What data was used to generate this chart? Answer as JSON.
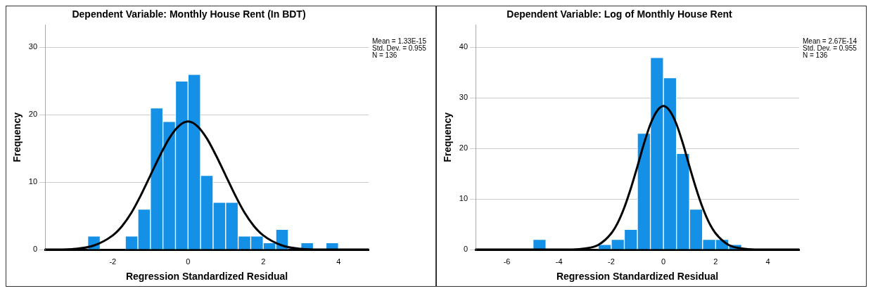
{
  "chart_data": [
    {
      "type": "histogram",
      "title": "Dependent Variable: Monthly House Rent (In BDT)",
      "xlabel": "Regression Standardized Residual",
      "ylabel": "Frequency",
      "color": "#1490e6",
      "bins": [
        -2.667,
        -2.333,
        -2,
        -1.667,
        -1.333,
        -1,
        -0.667,
        -0.333,
        0,
        0.333,
        0.667,
        1,
        1.333,
        1.667,
        2,
        2.333,
        2.667,
        3,
        3.333,
        3.667,
        4
      ],
      "values": [
        2,
        0,
        0,
        2,
        6,
        21,
        19,
        25,
        26,
        11,
        7,
        7,
        2,
        2,
        1,
        3,
        0,
        1,
        0,
        1
      ],
      "series": [
        {
          "type": "line",
          "color": "#000000",
          "x": [
            -3.8,
            -3.5,
            -3,
            -2.5,
            -2,
            -1.75,
            -1.5,
            -1.25,
            -1,
            -0.75,
            -0.5,
            -0.25,
            0,
            0.25,
            0.5,
            0.75,
            1,
            1.25,
            1.5,
            1.75,
            2,
            2.5,
            3,
            3.5,
            4,
            4.8
          ],
          "values": [
            0,
            0,
            0.1,
            0.6,
            2.1,
            3.5,
            5.5,
            8.1,
            11,
            13.9,
            16.5,
            18.3,
            19,
            18.3,
            16.5,
            13.9,
            11,
            8.1,
            5.5,
            3.5,
            2.1,
            0.6,
            0.1,
            0,
            0,
            0
          ]
        }
      ],
      "xlim": [
        -3.8,
        4.8
      ],
      "xticks": [
        -2,
        0,
        2,
        4
      ],
      "ylim": [
        0,
        33.3
      ],
      "yticks": [
        0,
        10,
        20,
        30
      ],
      "grid": "y",
      "annotations": [
        "Mean = 1.33E-15",
        "Std. Dev. = 0.955",
        "N = 136"
      ]
    },
    {
      "type": "histogram",
      "title": "Dependent Variable: Log of Monthly House Rent",
      "xlabel": "Regression Standardized Residual",
      "ylabel": "Frequency",
      "color": "#1490e6",
      "bins": [
        -5,
        -4.5,
        -4,
        -3.5,
        -3,
        -2.5,
        -2,
        -1.5,
        -1,
        -0.5,
        0,
        0.5,
        1,
        1.5,
        2,
        2.5,
        3
      ],
      "values": [
        2,
        0,
        0,
        0,
        0,
        1,
        2,
        4,
        23,
        38,
        34,
        19,
        8,
        2,
        2,
        1
      ],
      "series": [
        {
          "type": "line",
          "color": "#000000",
          "x": [
            -7.2,
            -4,
            -3.5,
            -3,
            -2.5,
            -2,
            -1.75,
            -1.5,
            -1.25,
            -1,
            -0.75,
            -0.5,
            -0.25,
            0,
            0.25,
            0.5,
            0.75,
            1,
            1.25,
            1.5,
            1.75,
            2,
            2.5,
            3,
            3.5,
            4,
            5.2
          ],
          "values": [
            0,
            0,
            0,
            0.2,
            0.9,
            3.2,
            5.3,
            8.3,
            12.1,
            16.4,
            20.9,
            24.8,
            27.4,
            28.4,
            27.4,
            24.8,
            20.9,
            16.4,
            12.1,
            8.3,
            5.3,
            3.2,
            0.9,
            0.2,
            0,
            0,
            0
          ]
        }
      ],
      "xlim": [
        -7.2,
        5.2
      ],
      "xticks": [
        -6,
        -4,
        -2,
        0,
        2,
        4
      ],
      "ylim": [
        0,
        44.4
      ],
      "yticks": [
        0,
        10,
        20,
        30,
        40
      ],
      "grid": "y",
      "annotations": [
        "Mean = 2.67E-14",
        "Std. Dev. = 0.955",
        "N = 136"
      ]
    }
  ]
}
